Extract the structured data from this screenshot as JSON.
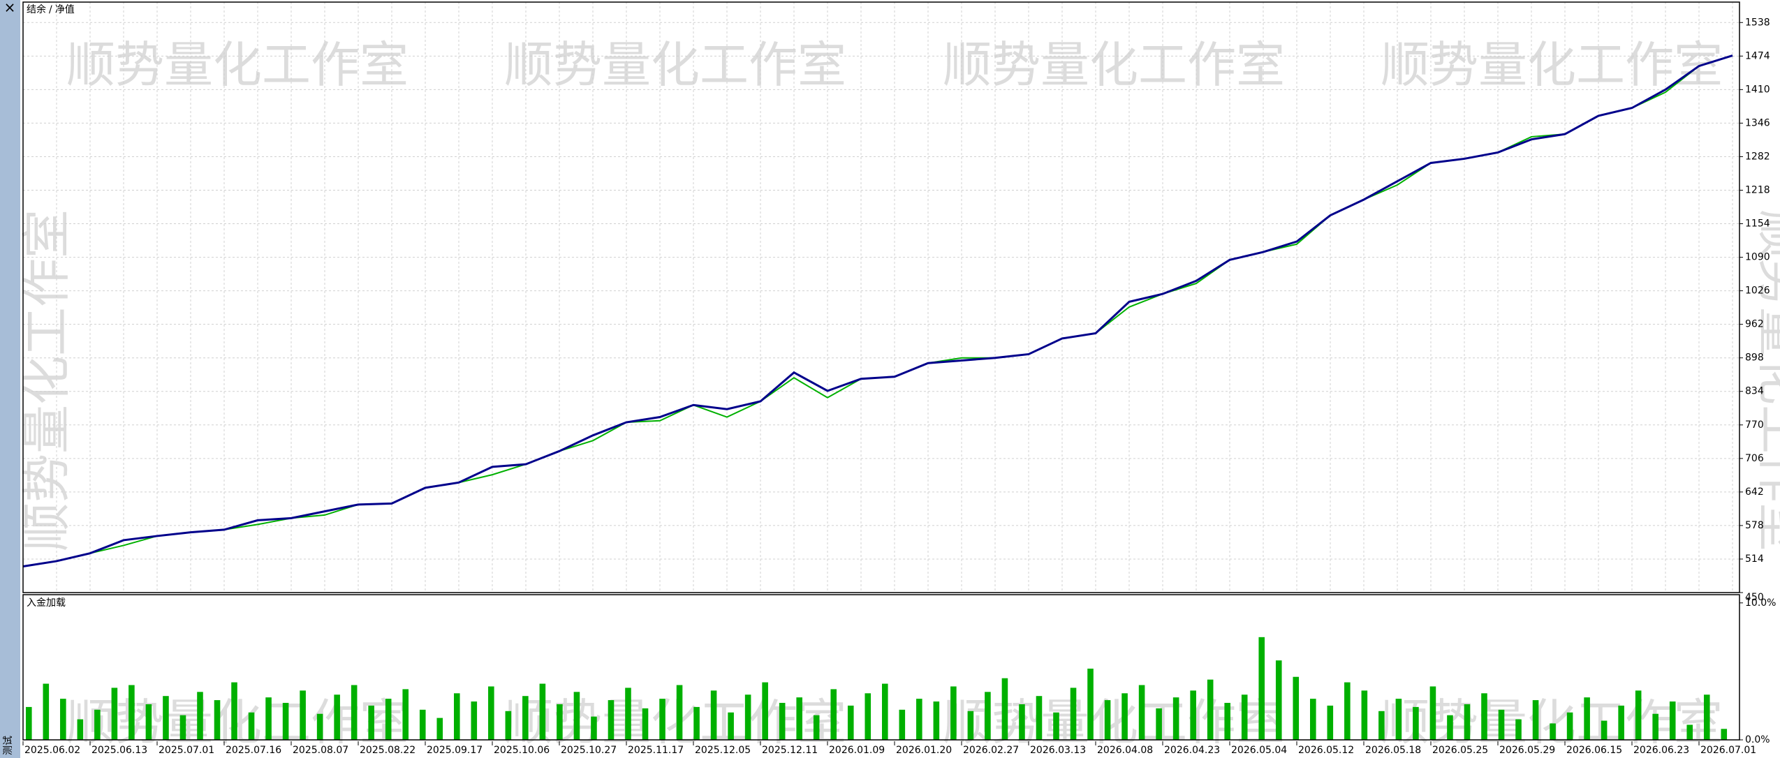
{
  "sidebar": {
    "close": "×",
    "tab": "测试"
  },
  "watermark": "顺势量化工作室",
  "chart_data": [
    {
      "type": "line",
      "legend_separator": "/",
      "categories": [
        "2025.06.02",
        null,
        "2025.06.13",
        null,
        "2025.07.01",
        null,
        "2025.07.16",
        null,
        "2025.08.07",
        null,
        "2025.08.22",
        null,
        "2025.09.17",
        null,
        "2025.10.06",
        null,
        "2025.10.27",
        null,
        "2025.11.17",
        null,
        "2025.12.05",
        null,
        "2025.12.11",
        null,
        "2026.01.09",
        null,
        "2026.01.20",
        null,
        "2026.02.27",
        null,
        "2026.03.13",
        null,
        "2026.04.08",
        null,
        "2026.04.23",
        null,
        "2026.05.04",
        null,
        "2026.05.12",
        null,
        "2026.05.18",
        null,
        "2026.05.25",
        null,
        "2026.05.29",
        null,
        "2026.06.15",
        null,
        "2026.06.23",
        null,
        "2026.07.01",
        null
      ],
      "series": [
        {
          "name": "结余",
          "color": "#00008b",
          "values": [
            500,
            510,
            525,
            550,
            558,
            565,
            570,
            588,
            592,
            605,
            618,
            620,
            650,
            660,
            690,
            695,
            720,
            750,
            775,
            785,
            808,
            800,
            815,
            870,
            835,
            858,
            862,
            888,
            893,
            898,
            905,
            935,
            945,
            1005,
            1020,
            1045,
            1085,
            1100,
            1120,
            1170,
            1200,
            1235,
            1270,
            1278,
            1290,
            1315,
            1325,
            1360,
            1375,
            1410,
            1455,
            1475
          ]
        },
        {
          "name": "净值",
          "color": "#00b000",
          "values": [
            500,
            510,
            525,
            540,
            558,
            565,
            570,
            580,
            592,
            598,
            618,
            620,
            650,
            660,
            675,
            695,
            720,
            740,
            775,
            778,
            808,
            785,
            815,
            860,
            822,
            858,
            862,
            888,
            898,
            898,
            905,
            935,
            945,
            995,
            1020,
            1040,
            1085,
            1100,
            1115,
            1170,
            1200,
            1228,
            1270,
            1278,
            1290,
            1320,
            1325,
            1360,
            1375,
            1405,
            1455,
            1475
          ]
        }
      ],
      "ylim": [
        450,
        1577
      ],
      "yticks": [
        450,
        514,
        578,
        642,
        706,
        770,
        834,
        898,
        962,
        1026,
        1090,
        1154,
        1218,
        1282,
        1346,
        1410,
        1474,
        1538
      ],
      "grid": true
    },
    {
      "type": "bar",
      "title": "入金加载",
      "color": "#00b000",
      "values": [
        2.4,
        4.1,
        3.0,
        1.5,
        2.2,
        3.8,
        4.0,
        2.6,
        3.2,
        1.8,
        3.5,
        2.9,
        4.2,
        2.0,
        3.1,
        2.7,
        3.6,
        1.9,
        3.3,
        4.0,
        2.5,
        3.0,
        3.7,
        2.2,
        1.6,
        3.4,
        2.8,
        3.9,
        2.1,
        3.2,
        4.1,
        2.6,
        3.5,
        1.7,
        2.9,
        3.8,
        2.3,
        3.0,
        4.0,
        2.4,
        3.6,
        2.0,
        3.3,
        4.2,
        2.7,
        3.1,
        1.8,
        3.7,
        2.5,
        3.4,
        4.1,
        2.2,
        3.0,
        2.8,
        3.9,
        2.1,
        3.5,
        4.5,
        2.6,
        3.2,
        2.0,
        3.8,
        5.2,
        2.9,
        3.4,
        4.0,
        2.3,
        3.1,
        3.6,
        4.4,
        2.7,
        3.3,
        7.5,
        5.8,
        4.6,
        3.0,
        2.5,
        4.2,
        3.6,
        2.1,
        3.0,
        2.4,
        3.9,
        1.8,
        2.6,
        3.4,
        2.2,
        1.5,
        2.9,
        1.2,
        2.0,
        3.1,
        1.4,
        2.5,
        3.6,
        1.9,
        2.8,
        1.1,
        3.3,
        0.8
      ],
      "ylim": [
        0,
        10.6
      ],
      "yticks": [
        {
          "value": 0,
          "label": "0.0%"
        },
        {
          "value": 10,
          "label": "10.0%"
        }
      ]
    }
  ]
}
